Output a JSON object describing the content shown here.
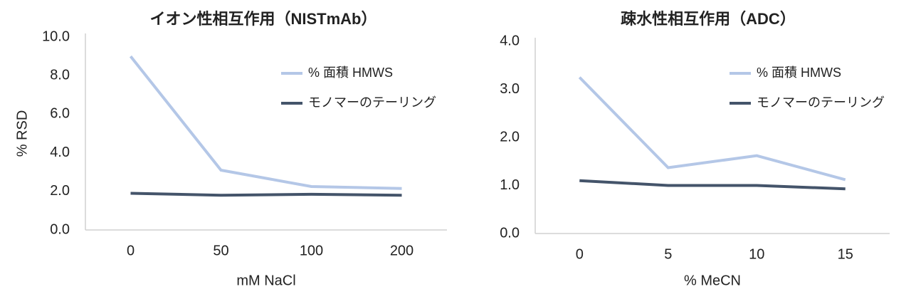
{
  "chart_data": [
    {
      "type": "line",
      "title": "イオン性相互作用（NISTmAb）",
      "y_label": "% RSD",
      "x_label": "mM NaCl",
      "categories": [
        "0",
        "50",
        "100",
        "200"
      ],
      "series": [
        {
          "name": "% 面積 HMWS",
          "color": "#b4c7e7",
          "values": [
            9.0,
            3.1,
            2.25,
            2.15
          ]
        },
        {
          "name": "モノマーのテーリング",
          "color": "#44546a",
          "values": [
            1.9,
            1.8,
            1.85,
            1.8
          ]
        }
      ],
      "ylim": [
        0,
        10
      ],
      "yticks": [
        {
          "value": 0,
          "label": "0.0"
        },
        {
          "value": 2,
          "label": "2.0"
        },
        {
          "value": 4,
          "label": "4.0"
        },
        {
          "value": 6,
          "label": "6.0"
        },
        {
          "value": 8,
          "label": "8.0"
        },
        {
          "value": 10,
          "label": "10.0"
        }
      ]
    },
    {
      "type": "line",
      "title": "疎水性相互作用（ADC）",
      "x_label": "% MeCN",
      "categories": [
        "0",
        "5",
        "10",
        "15"
      ],
      "series": [
        {
          "name": "% 面積 HMWS",
          "color": "#b4c7e7",
          "values": [
            3.25,
            1.37,
            1.62,
            1.12
          ]
        },
        {
          "name": "モノマーのテーリング",
          "color": "#44546a",
          "values": [
            1.1,
            1.0,
            1.0,
            0.93
          ]
        }
      ],
      "ylim": [
        0,
        4
      ],
      "yticks": [
        {
          "value": 0,
          "label": "0.0"
        },
        {
          "value": 1,
          "label": "1.0"
        },
        {
          "value": 2,
          "label": "2.0"
        },
        {
          "value": 3,
          "label": "3.0"
        },
        {
          "value": 4,
          "label": "4.0"
        }
      ]
    }
  ]
}
